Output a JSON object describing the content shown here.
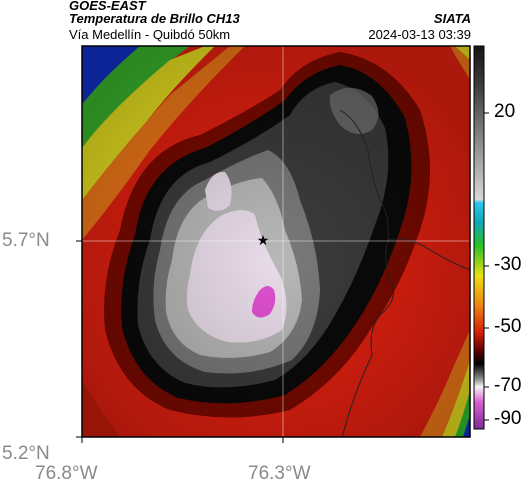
{
  "header": {
    "satellite": "GOES-EAST",
    "product": "Temperatura de Brillo CH13",
    "source": "SIATA",
    "route": "Vía Medellín - Quibdó 50km",
    "datetime": "2024-03-13 03:39"
  },
  "axes": {
    "lat_labels": [
      "5.7°N",
      "5.2°N"
    ],
    "lon_labels": [
      "76.8°W",
      "76.3°W"
    ]
  },
  "colorbar": {
    "tick_labels": [
      "20",
      "-30",
      "-50",
      "-70",
      "-90"
    ],
    "ramp_colors": [
      "#1a1a1a",
      "#6b6b6b",
      "#bcbcbc",
      "#2bb7e6",
      "#16b3c8",
      "#2fbf2f",
      "#e0e000",
      "#e08000",
      "#d42000",
      "#550000",
      "#000000",
      "#b0b0b0",
      "#ffffff",
      "#d050d0",
      "#8030a0"
    ]
  },
  "map": {
    "marker_icon": "star-icon",
    "colors": {
      "blue": "#1030c8",
      "green": "#30c030",
      "yellow": "#e8e020",
      "orange": "#f07818",
      "red": "#e42010",
      "dark_red": "#7a0a00",
      "black": "#0a0a0a",
      "dark_gray": "#3c3c3c",
      "mid_gray": "#7a7a7a",
      "light_gray": "#b8b8b8",
      "pale": "#e8dce8",
      "magenta": "#e050d0"
    }
  }
}
